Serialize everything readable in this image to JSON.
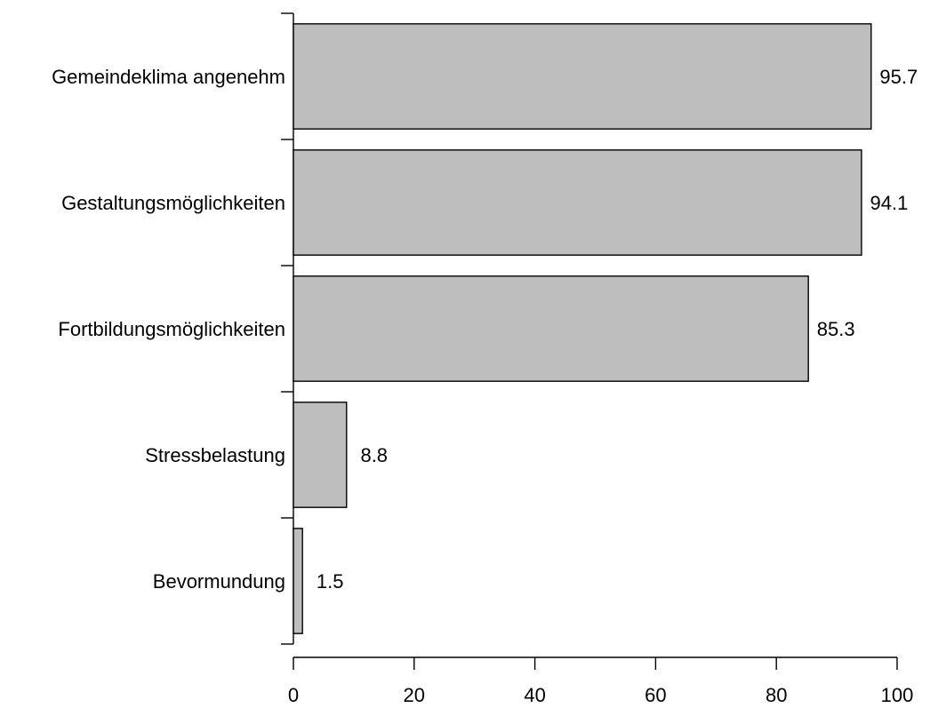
{
  "chart_data": {
    "type": "bar",
    "orientation": "horizontal",
    "categories": [
      "Gemeindeklima angenehm",
      "Gestaltungsmöglichkeiten",
      "Fortbildungsmöglichkeiten",
      "Stressbelastung",
      "Bevormundung"
    ],
    "values": [
      95.7,
      94.1,
      85.3,
      8.8,
      1.5
    ],
    "value_labels": [
      "95.7",
      "94.1",
      "85.3",
      "8.8",
      "1.5"
    ],
    "x_ticks": [
      0,
      20,
      40,
      60,
      80,
      100
    ],
    "x_tick_labels": [
      "0",
      "20",
      "40",
      "60",
      "80",
      "100"
    ],
    "xlim": [
      0,
      100
    ],
    "title": "",
    "xlabel": "",
    "ylabel": "",
    "grid": false,
    "legend": "none",
    "colors": {
      "bar_fill": "#bebebe",
      "bar_stroke": "#000000",
      "text": "#000000"
    }
  }
}
